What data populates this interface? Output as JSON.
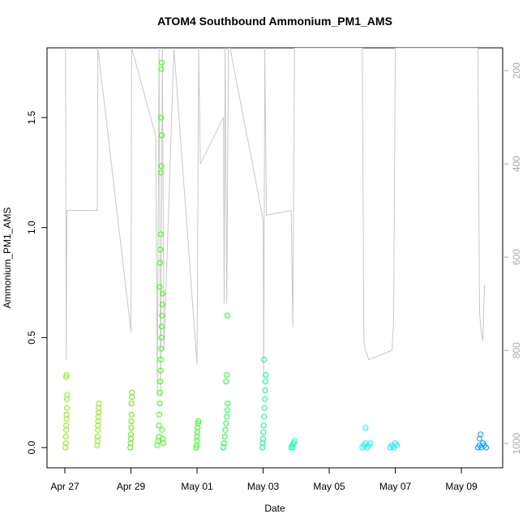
{
  "chart_data": {
    "type": "scatter",
    "title": "ATOM4 Southbound Ammonium_PM1_AMS",
    "x_label": "Date",
    "y_label": "Ammonium_PM1_AMS",
    "xlim": [
      26.46,
      40.25
    ],
    "xticks": [
      {
        "value": 27,
        "label": "Apr 27"
      },
      {
        "value": 29,
        "label": "Apr 29"
      },
      {
        "value": 31,
        "label": "May 01"
      },
      {
        "value": 33,
        "label": "May 03"
      },
      {
        "value": 35,
        "label": "May 05"
      },
      {
        "value": 37,
        "label": "May 07"
      },
      {
        "value": 39,
        "label": "May 09"
      }
    ],
    "ylim": [
      -0.092,
      1.817
    ],
    "yticks": [
      {
        "value": 0,
        "label": "0.0"
      },
      0.5,
      {
        "value": 1,
        "label": "1.0"
      },
      1.5
    ],
    "y2lim": [
      1052,
      151
    ],
    "y2ticks": [
      200,
      400,
      600,
      800,
      1000
    ],
    "series": [
      {
        "color": "#88ee00",
        "x": [
          27.02,
          27.03,
          27.03,
          27.04,
          27.04,
          27.05,
          27.05,
          27.06,
          27.06,
          27.07,
          27.04,
          27.05
        ],
        "values": [
          0.0,
          0.02,
          0.05,
          0.08,
          0.1,
          0.13,
          0.15,
          0.18,
          0.22,
          0.24,
          0.32,
          0.33
        ]
      },
      {
        "color": "#80ee00",
        "x": [
          27.98,
          27.99,
          27.99,
          28.0,
          28.0,
          28.01,
          28.01,
          28.02,
          28.02,
          28.03
        ],
        "values": [
          0.01,
          0.03,
          0.05,
          0.08,
          0.1,
          0.12,
          0.14,
          0.16,
          0.18,
          0.2
        ]
      },
      {
        "color": "#55ee00",
        "x": [
          28.98,
          28.99,
          29.0,
          29.0,
          29.01,
          29.01,
          29.02,
          29.02,
          29.03,
          29.03
        ],
        "values": [
          0.0,
          0.02,
          0.04,
          0.06,
          0.09,
          0.12,
          0.15,
          0.2,
          0.23,
          0.25
        ]
      },
      {
        "color": "#33ff00",
        "x": [
          29.8,
          29.82,
          29.84,
          29.85,
          29.86,
          29.87,
          29.88,
          29.89,
          29.9,
          29.9,
          29.91,
          29.92,
          29.93,
          29.94,
          29.95,
          29.96,
          29.97,
          29.98,
          29.87,
          29.88,
          29.89,
          29.9,
          29.91,
          29.92,
          29.93,
          29.91,
          29.92,
          29.93,
          29.94
        ],
        "values": [
          0.01,
          0.03,
          0.05,
          0.1,
          0.15,
          0.2,
          0.25,
          0.3,
          0.35,
          0.4,
          0.45,
          0.5,
          0.55,
          0.6,
          0.65,
          0.7,
          0.04,
          0.02,
          0.73,
          0.84,
          0.9,
          0.97,
          1.25,
          1.28,
          1.42,
          1.5,
          1.72,
          1.75,
          0.08
        ]
      },
      {
        "color": "#22ff11",
        "x": [
          30.98,
          30.99,
          31.0,
          31.0,
          31.01,
          31.02,
          31.03,
          31.04
        ],
        "values": [
          0.0,
          0.01,
          0.03,
          0.05,
          0.07,
          0.09,
          0.11,
          0.12
        ]
      },
      {
        "color": "#11ff33",
        "x": [
          31.8,
          31.82,
          31.84,
          31.86,
          31.88,
          31.9,
          31.92,
          31.93,
          31.88,
          31.9,
          31.92
        ],
        "values": [
          0.0,
          0.02,
          0.05,
          0.08,
          0.11,
          0.14,
          0.17,
          0.2,
          0.3,
          0.33,
          0.6
        ]
      },
      {
        "color": "#00ff88",
        "x": [
          32.98,
          32.99,
          33.0,
          33.01,
          33.02,
          33.03,
          33.04,
          33.05,
          33.06,
          33.07,
          33.08,
          33.03
        ],
        "values": [
          0.0,
          0.02,
          0.04,
          0.07,
          0.1,
          0.14,
          0.18,
          0.22,
          0.26,
          0.3,
          0.33,
          0.4
        ]
      },
      {
        "color": "#00ffaa",
        "x": [
          33.85,
          33.88,
          33.9,
          33.93,
          33.95
        ],
        "values": [
          0.0,
          0.01,
          0.0,
          0.02,
          0.03
        ]
      },
      {
        "color": "#00ffee",
        "x": [
          36.0,
          36.05,
          36.1,
          36.15,
          36.2,
          36.25,
          36.1
        ],
        "values": [
          0.0,
          0.01,
          0.02,
          0.0,
          0.01,
          0.02,
          0.09
        ]
      },
      {
        "color": "#00eeff",
        "x": [
          36.85,
          36.9,
          36.95,
          37.0,
          37.05
        ],
        "values": [
          0.0,
          0.01,
          0.0,
          0.02,
          0.01
        ]
      },
      {
        "color": "#0099ff",
        "x": [
          39.5,
          39.55,
          39.6,
          39.65,
          39.7,
          39.75,
          39.55,
          39.58
        ],
        "values": [
          0.0,
          0.01,
          0.0,
          0.02,
          0.01,
          0.0,
          0.04,
          0.06
        ]
      },
      {
        "type": "line",
        "axis": "y2",
        "color": "#c8c8c8",
        "x": [
          27.02,
          27.04,
          27.06,
          27.98,
          28.0,
          29.0,
          29.02,
          29.75,
          29.8,
          29.85,
          29.9,
          29.95,
          30.0,
          30.3,
          31.0,
          31.05,
          31.1,
          31.8,
          31.82,
          31.85,
          31.9,
          31.95,
          32.0,
          33.0,
          33.02,
          33.05,
          33.1,
          33.85,
          33.9,
          33.95,
          36.0,
          36.05,
          36.1,
          36.15,
          36.2,
          36.9,
          36.95,
          37.0,
          39.5,
          39.55,
          39.6,
          39.65,
          39.7
        ],
        "values": [
          151,
          820,
          500,
          500,
          151,
          760,
          151,
          340,
          900,
          151,
          900,
          151,
          800,
          151,
          830,
          151,
          400,
          300,
          700,
          151,
          700,
          151,
          151,
          520,
          860,
          151,
          510,
          500,
          750,
          151,
          151,
          780,
          800,
          810,
          820,
          800,
          740,
          151,
          151,
          720,
          760,
          780,
          660
        ]
      }
    ]
  }
}
